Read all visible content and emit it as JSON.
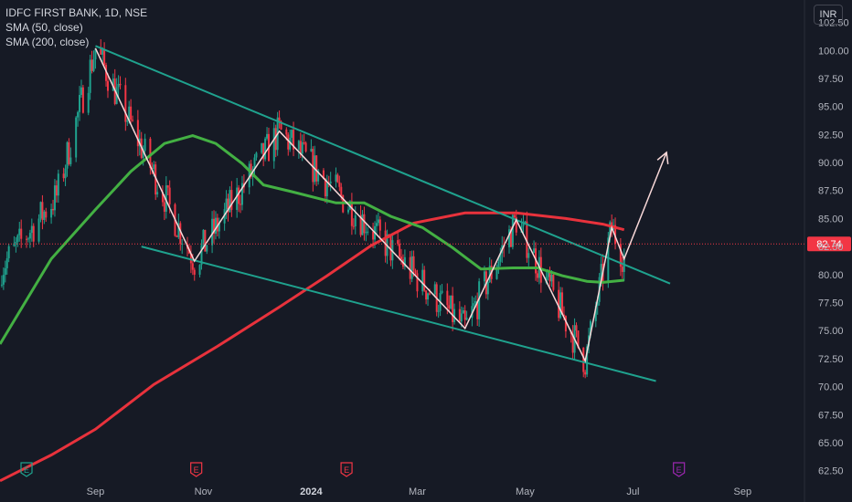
{
  "legend": {
    "title": "IDFC FIRST BANK, 1D, NSE",
    "sma50": "SMA (50, close)",
    "sma200": "SMA (200, close)"
  },
  "currency_button": "INR",
  "colors": {
    "background": "#161a25",
    "channel": "#1fa28e",
    "zigzag": "#f8d8d8",
    "sma50": "#43b043",
    "sma200": "#e8323c",
    "price_label": "#f23645",
    "candle_up": "#1fa28e",
    "candle_down": "#f23645",
    "event_earnings": "#f23645",
    "event_e_green": "#1fa28e",
    "event_purple": "#9c27b0"
  },
  "chart_data": {
    "type": "candlestick",
    "symbol": "IDFC FIRST BANK",
    "interval": "1D",
    "exchange": "NSE",
    "y_axis": {
      "ticks": [
        "102.50",
        "100.00",
        "97.50",
        "95.00",
        "92.50",
        "90.00",
        "87.50",
        "85.00",
        "82.50",
        "80.00",
        "77.50",
        "75.00",
        "72.50",
        "70.00",
        "67.50",
        "65.00",
        "62.50"
      ],
      "ylim": [
        61.5,
        104.5
      ]
    },
    "x_axis": {
      "ticks": [
        {
          "label": "Sep",
          "date": "2023-09-01"
        },
        {
          "label": "Nov",
          "date": "2023-11-01"
        },
        {
          "label": "2024",
          "date": "2024-01-01"
        },
        {
          "label": "Mar",
          "date": "2024-03-01"
        },
        {
          "label": "May",
          "date": "2024-05-01"
        },
        {
          "label": "Jul",
          "date": "2024-07-01"
        },
        {
          "label": "Sep",
          "date": "2024-09-01"
        }
      ],
      "xlim": [
        "2023-07-09",
        "2024-10-06"
      ]
    },
    "last_price": "82.74",
    "last_price_value": 82.74,
    "channel_upper": [
      {
        "x": "2023-09-01",
        "y": 100.4
      },
      {
        "x": "2024-07-22",
        "y": 79.2
      }
    ],
    "channel_lower": [
      {
        "x": "2023-09-27",
        "y": 82.5
      },
      {
        "x": "2024-07-14",
        "y": 70.5
      }
    ],
    "zigzag": [
      {
        "x": "2023-09-01",
        "y": 100.2
      },
      {
        "x": "2023-10-27",
        "y": 81.2
      },
      {
        "x": "2023-12-14",
        "y": 92.8
      },
      {
        "x": "2024-03-28",
        "y": 75.2
      },
      {
        "x": "2024-04-26",
        "y": 84.9
      },
      {
        "x": "2024-06-04",
        "y": 72.3
      },
      {
        "x": "2024-06-19",
        "y": 84.2
      },
      {
        "x": "2024-06-26",
        "y": 81.4
      },
      {
        "x": "2024-07-20",
        "y": 90.9
      }
    ],
    "sma50": [
      {
        "x": "2023-07-09",
        "y": 73.8
      },
      {
        "x": "2023-08-07",
        "y": 81.4
      },
      {
        "x": "2023-09-01",
        "y": 85.8
      },
      {
        "x": "2023-09-21",
        "y": 89.2
      },
      {
        "x": "2023-10-10",
        "y": 91.7
      },
      {
        "x": "2023-10-26",
        "y": 92.4
      },
      {
        "x": "2023-11-08",
        "y": 91.7
      },
      {
        "x": "2023-11-23",
        "y": 89.9
      },
      {
        "x": "2023-12-05",
        "y": 88.0
      },
      {
        "x": "2023-12-21",
        "y": 87.4
      },
      {
        "x": "2024-01-15",
        "y": 86.4
      },
      {
        "x": "2024-01-31",
        "y": 86.4
      },
      {
        "x": "2024-02-15",
        "y": 85.2
      },
      {
        "x": "2024-03-04",
        "y": 84.2
      },
      {
        "x": "2024-03-21",
        "y": 82.4
      },
      {
        "x": "2024-04-06",
        "y": 80.5
      },
      {
        "x": "2024-04-24",
        "y": 80.6
      },
      {
        "x": "2024-05-08",
        "y": 80.6
      },
      {
        "x": "2024-05-22",
        "y": 79.9
      },
      {
        "x": "2024-06-05",
        "y": 79.4
      },
      {
        "x": "2024-06-14",
        "y": 79.3
      },
      {
        "x": "2024-06-26",
        "y": 79.5
      }
    ],
    "sma200": [
      {
        "x": "2023-07-09",
        "y": 61.6
      },
      {
        "x": "2023-08-07",
        "y": 63.9
      },
      {
        "x": "2023-09-01",
        "y": 66.2
      },
      {
        "x": "2023-10-04",
        "y": 70.2
      },
      {
        "x": "2023-11-09",
        "y": 73.6
      },
      {
        "x": "2023-12-14",
        "y": 77.1
      },
      {
        "x": "2024-01-10",
        "y": 79.9
      },
      {
        "x": "2024-02-04",
        "y": 82.6
      },
      {
        "x": "2024-02-28",
        "y": 84.6
      },
      {
        "x": "2024-03-28",
        "y": 85.5
      },
      {
        "x": "2024-04-26",
        "y": 85.5
      },
      {
        "x": "2024-05-24",
        "y": 85.0
      },
      {
        "x": "2024-06-14",
        "y": 84.5
      },
      {
        "x": "2024-06-26",
        "y": 84.0
      }
    ],
    "events": [
      {
        "label": "E",
        "date": "2023-07-24",
        "color": "#1fa28e"
      },
      {
        "label": "E",
        "date": "2023-10-28",
        "color": "#f23645"
      },
      {
        "label": "E",
        "date": "2024-01-21",
        "color": "#f23645"
      },
      {
        "label": "E",
        "date": "2024-07-27",
        "color": "#9c27b0"
      }
    ]
  }
}
